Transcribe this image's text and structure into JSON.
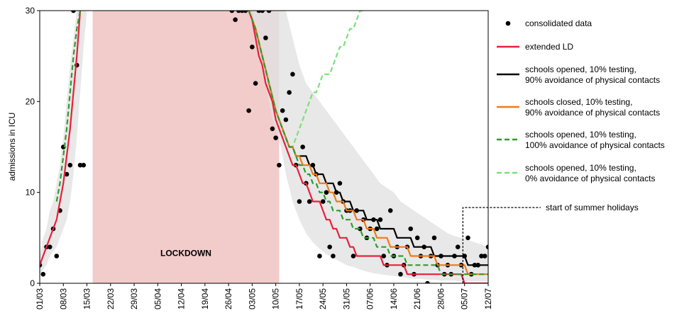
{
  "chart_data": {
    "type": "line",
    "ylabel": "admissions in ICU",
    "ylim": [
      0,
      30
    ],
    "yticks": [
      0,
      10,
      20,
      30
    ],
    "xlim": [
      0,
      133
    ],
    "xticks": [
      {
        "day": 0,
        "label": "01/03"
      },
      {
        "day": 7,
        "label": "08/03"
      },
      {
        "day": 14,
        "label": "15/03"
      },
      {
        "day": 21,
        "label": "22/03"
      },
      {
        "day": 28,
        "label": "29/03"
      },
      {
        "day": 35,
        "label": "05/04"
      },
      {
        "day": 42,
        "label": "12/04"
      },
      {
        "day": 49,
        "label": "19/04"
      },
      {
        "day": 56,
        "label": "26/04"
      },
      {
        "day": 63,
        "label": "03/05"
      },
      {
        "day": 70,
        "label": "10/05"
      },
      {
        "day": 77,
        "label": "17/05"
      },
      {
        "day": 84,
        "label": "24/05"
      },
      {
        "day": 91,
        "label": "31/05"
      },
      {
        "day": 98,
        "label": "07/06"
      },
      {
        "day": 105,
        "label": "14/06"
      },
      {
        "day": 112,
        "label": "21/06"
      },
      {
        "day": 119,
        "label": "28/06"
      },
      {
        "day": 126,
        "label": "05/07"
      },
      {
        "day": 133,
        "label": "12/07"
      }
    ],
    "lockdown": {
      "start_day": 15.7,
      "end_day": 71,
      "label": "LOCKDOWN",
      "color": "#f2cbcb"
    },
    "summer_holidays": {
      "day": 125.5,
      "label": "start of summer holidays"
    },
    "band": {
      "color": "#e2e2e2",
      "segments": [
        {
          "x": [
            0,
            1,
            2,
            3,
            4,
            5,
            6,
            7,
            8,
            9,
            10,
            11,
            12,
            13,
            14
          ],
          "lower": [
            1,
            1.5,
            2,
            3,
            3.5,
            4,
            5,
            6,
            7,
            9,
            12,
            16,
            21,
            26,
            30
          ],
          "upper": [
            3,
            5,
            6,
            8,
            9,
            11,
            13,
            16,
            20,
            24,
            27,
            30,
            30,
            30,
            30
          ]
        },
        {
          "x": [
            57,
            59,
            61,
            63,
            65,
            67,
            69,
            71,
            73,
            75,
            77,
            79,
            81,
            83,
            85,
            87,
            89,
            91,
            93,
            95,
            97,
            99,
            101,
            103,
            105,
            107,
            109,
            111,
            113,
            115,
            117,
            119,
            121,
            123,
            125,
            127,
            129,
            131,
            133
          ],
          "lower": [
            30,
            30,
            30,
            30,
            26,
            22,
            18,
            16,
            12,
            9,
            7,
            5.5,
            4.5,
            3.8,
            3.2,
            2.8,
            2.4,
            2,
            1.8,
            1.5,
            1.3,
            1.1,
            1,
            0.9,
            0.8,
            0.7,
            0.6,
            0.5,
            0.5,
            0.4,
            0.4,
            0.3,
            0.3,
            0.3,
            0.2,
            0.2,
            0.2,
            0.2,
            0.2
          ],
          "upper": [
            30,
            30,
            30,
            30,
            30,
            30,
            30,
            30,
            30,
            27,
            24,
            22,
            21,
            20,
            19,
            18,
            17,
            16,
            15,
            14,
            13,
            12,
            11,
            10.5,
            10,
            9,
            8.5,
            8,
            7.5,
            7,
            6.5,
            6,
            5.5,
            5.2,
            5,
            4.8,
            4.5,
            4.3,
            4
          ]
        }
      ]
    },
    "consolidated_data": {
      "x": [
        0,
        1,
        2,
        3,
        4,
        5,
        6,
        7,
        8,
        9,
        10,
        11,
        12,
        13,
        57,
        58,
        59,
        60,
        61,
        62,
        63,
        64,
        65,
        66,
        67,
        68,
        69,
        70,
        71,
        72,
        73,
        74,
        75,
        76,
        77,
        78,
        79,
        80,
        81,
        82,
        83,
        84,
        85,
        86,
        87,
        88,
        89,
        90,
        91,
        92,
        93,
        94,
        95,
        96,
        97,
        98,
        99,
        100,
        101,
        102,
        103,
        104,
        105,
        106,
        107,
        108,
        109,
        110,
        111,
        112,
        113,
        114,
        115,
        116,
        117,
        118,
        119,
        120,
        121,
        122,
        123,
        124,
        125,
        126,
        127,
        128,
        129,
        130,
        131,
        132,
        133
      ],
      "y": [
        2,
        1,
        4,
        4,
        6,
        3,
        8,
        15,
        12,
        13,
        30,
        24,
        13,
        13,
        30,
        29,
        30,
        30,
        30,
        19,
        26,
        22,
        30,
        30,
        27,
        30,
        17,
        16,
        13,
        19,
        18,
        21,
        23,
        13,
        9,
        15,
        11,
        9,
        13,
        12,
        3,
        9,
        10,
        4,
        3,
        10,
        11,
        9,
        8,
        8,
        3,
        8,
        6,
        7,
        5,
        6,
        7,
        6,
        7,
        3,
        2,
        8,
        3,
        4,
        1,
        2,
        4,
        6,
        1,
        5,
        3,
        4,
        0,
        3,
        5,
        2,
        3,
        1,
        2,
        1,
        3,
        4,
        2,
        3,
        5,
        1,
        2,
        2,
        3,
        3,
        4
      ],
      "color": "#000000"
    },
    "series": [
      {
        "name": "extended LD",
        "color": "#e8203a",
        "dash": "solid",
        "x": [
          0,
          2,
          4,
          5,
          6,
          7,
          8,
          9,
          10,
          11,
          12,
          62,
          63,
          64,
          65,
          66,
          67,
          68,
          69,
          70,
          71,
          72,
          73,
          74,
          75,
          76,
          77,
          78,
          79,
          80,
          81,
          82,
          83,
          84,
          85,
          86,
          87,
          88,
          89,
          90,
          91,
          92,
          93,
          94,
          95,
          96,
          97,
          98,
          99,
          100,
          101,
          102,
          103,
          104,
          105,
          106,
          107,
          108,
          109,
          110,
          111,
          112,
          113,
          114,
          115,
          116,
          117,
          118,
          119,
          120,
          121,
          122,
          123,
          124,
          125,
          126,
          127,
          128,
          129,
          130,
          131,
          132,
          133
        ],
        "y": [
          2,
          4,
          6,
          7,
          9,
          11,
          14,
          17,
          21,
          25,
          30,
          30,
          29,
          27,
          25,
          24,
          22,
          21,
          20,
          18,
          17,
          16,
          15,
          14,
          13,
          13,
          12,
          11,
          11,
          10,
          9,
          9,
          9,
          8,
          7,
          7,
          6,
          6,
          5,
          5,
          5,
          4,
          4,
          3,
          3,
          3,
          3,
          3,
          3,
          3,
          3,
          2,
          2,
          2,
          2,
          2,
          2,
          2,
          1,
          1,
          1,
          1,
          1,
          1,
          1,
          1,
          1,
          1,
          1,
          1,
          1,
          1,
          1,
          1,
          1,
          0,
          0,
          0,
          0,
          0,
          0,
          0,
          0
        ]
      },
      {
        "name": "schools opened, 10% testing,\n90% avoidance of physical contacts",
        "color": "#000000",
        "dash": "solid",
        "x": [
          62,
          64,
          66,
          68,
          70,
          71,
          72,
          73,
          74,
          75,
          76,
          77,
          78,
          79,
          80,
          81,
          82,
          83,
          84,
          85,
          86,
          87,
          88,
          89,
          90,
          91,
          92,
          93,
          94,
          95,
          96,
          97,
          98,
          99,
          100,
          101,
          102,
          103,
          104,
          105,
          106,
          107,
          108,
          109,
          110,
          111,
          112,
          113,
          114,
          115,
          116,
          117,
          118,
          119,
          120,
          121,
          122,
          123,
          124,
          125,
          126,
          127,
          128,
          129,
          130,
          131,
          132,
          133
        ],
        "y": [
          30,
          28,
          25,
          22,
          19,
          18,
          17,
          16,
          15,
          15,
          14,
          14,
          14,
          14,
          13,
          13,
          12,
          12,
          12,
          11,
          11,
          11,
          10,
          10,
          9,
          9,
          9,
          8,
          8,
          8,
          8,
          7,
          7,
          7,
          7,
          6,
          6,
          6,
          6,
          6,
          5,
          5,
          5,
          5,
          5,
          4,
          4,
          4,
          4,
          4,
          4,
          3,
          3,
          3,
          3,
          3,
          3,
          3,
          3,
          3,
          3,
          2,
          2,
          2,
          2,
          2,
          2,
          2
        ]
      },
      {
        "name": "schools closed, 10% testing,\n90% avoidance of physical contacts",
        "color": "#f07a18",
        "dash": "solid",
        "x": [
          62,
          64,
          66,
          68,
          70,
          71,
          72,
          73,
          74,
          75,
          76,
          77,
          78,
          79,
          80,
          81,
          82,
          83,
          84,
          85,
          86,
          87,
          88,
          89,
          90,
          91,
          92,
          93,
          94,
          95,
          96,
          97,
          98,
          99,
          100,
          101,
          102,
          103,
          104,
          105,
          106,
          107,
          108,
          109,
          110,
          111,
          112,
          113,
          114,
          115,
          116,
          117,
          118,
          119,
          120,
          121,
          122,
          123,
          124,
          125,
          126,
          127,
          128,
          129,
          130,
          131,
          132,
          133
        ],
        "y": [
          30,
          28,
          25,
          22,
          19,
          18,
          17,
          16,
          15,
          15,
          14,
          14,
          13,
          13,
          13,
          12,
          12,
          11,
          11,
          11,
          10,
          10,
          9,
          9,
          9,
          8,
          8,
          8,
          7,
          7,
          7,
          6,
          6,
          6,
          5,
          5,
          5,
          5,
          4,
          4,
          4,
          4,
          4,
          4,
          3,
          3,
          3,
          3,
          3,
          3,
          3,
          3,
          2,
          2,
          2,
          2,
          2,
          2,
          2,
          2,
          2,
          1,
          1,
          1,
          1,
          1,
          1,
          1
        ]
      },
      {
        "name": "schools opened, 10% testing,\n100% avoidance of physical contacts",
        "color": "#2e9c2e",
        "dash": "dashed",
        "x": [
          5,
          6,
          7,
          8,
          9,
          10,
          11,
          12,
          62,
          64,
          66,
          68,
          70,
          71,
          72,
          73,
          74,
          75,
          76,
          77,
          78,
          79,
          80,
          81,
          82,
          83,
          84,
          85,
          86,
          87,
          88,
          89,
          90,
          91,
          92,
          93,
          94,
          95,
          96,
          97,
          98,
          99,
          100,
          101,
          102,
          103,
          104,
          105,
          106,
          107,
          108,
          109,
          110,
          111,
          112,
          113,
          114,
          115,
          116,
          117,
          118,
          119,
          120,
          121,
          122,
          123,
          124,
          125,
          126,
          127,
          128,
          129,
          130,
          131,
          132,
          133
        ],
        "y": [
          9,
          11,
          14,
          17,
          21,
          25,
          28,
          30,
          30,
          28,
          25,
          22,
          19,
          18,
          17,
          16,
          15,
          15,
          14,
          13,
          13,
          12,
          12,
          11,
          11,
          10,
          10,
          9,
          9,
          8,
          8,
          8,
          7,
          7,
          7,
          6,
          6,
          6,
          5,
          5,
          5,
          5,
          4,
          4,
          4,
          4,
          3,
          3,
          3,
          3,
          3,
          2,
          2,
          2,
          2,
          2,
          2,
          2,
          2,
          2,
          2,
          1,
          1,
          1,
          1,
          1,
          1,
          1,
          1,
          1,
          1,
          1,
          1,
          1,
          1,
          1
        ]
      },
      {
        "name": "schools opened, 10% testing,\n0% avoidance of physical contacts",
        "color": "#79e07a",
        "dash": "dashed",
        "x": [
          74,
          75,
          76,
          77,
          78,
          79,
          80,
          81,
          82,
          83,
          84,
          85,
          86,
          87,
          88,
          89,
          90,
          91,
          92,
          93,
          94,
          95,
          96
        ],
        "y": [
          15,
          15,
          16,
          17,
          18,
          19,
          20,
          21,
          21,
          22,
          23,
          23,
          23,
          24,
          25,
          26,
          26,
          27,
          28,
          28,
          29,
          30,
          30
        ]
      }
    ]
  }
}
